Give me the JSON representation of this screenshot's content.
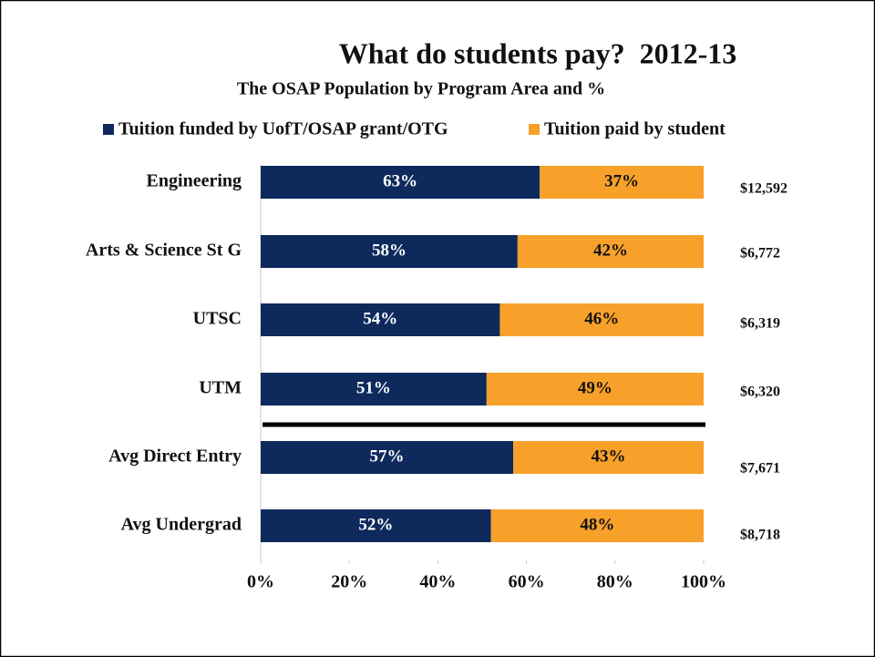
{
  "chart_data": {
    "type": "stacked_bar_horizontal",
    "title": "What do students pay?  2012-13",
    "subtitle": "The OSAP Population by Program Area and %",
    "categories": [
      "Engineering",
      "Arts & Science St G",
      "UTSC",
      "UTM",
      "Avg Direct Entry",
      "Avg Undergrad"
    ],
    "series": [
      {
        "name": "Tuition funded by UofT/OSAP grant/OTG",
        "color": "#0e2a5c",
        "values": [
          63,
          58,
          54,
          51,
          57,
          52
        ],
        "value_labels": [
          "63%",
          "58%",
          "54%",
          "51%",
          "57%",
          "52%"
        ]
      },
      {
        "name": "Tuition paid by student",
        "color": "#f7a12b",
        "values": [
          37,
          42,
          46,
          49,
          43,
          48
        ],
        "value_labels": [
          "37%",
          "42%",
          "46%",
          "49%",
          "43%",
          "48%"
        ]
      }
    ],
    "annotations": [
      "$12,592",
      "$6,772",
      "$6,319",
      "$6,320",
      "$7,671",
      "$8,718"
    ],
    "xlim": [
      0,
      100
    ],
    "xticks": [
      {
        "value": 0,
        "label": "0%"
      },
      {
        "value": 20,
        "label": "20%"
      },
      {
        "value": 40,
        "label": "40%"
      },
      {
        "value": 60,
        "label": "60%"
      },
      {
        "value": 80,
        "label": "80%"
      },
      {
        "value": 100,
        "label": "100%"
      }
    ],
    "legend": "top"
  }
}
